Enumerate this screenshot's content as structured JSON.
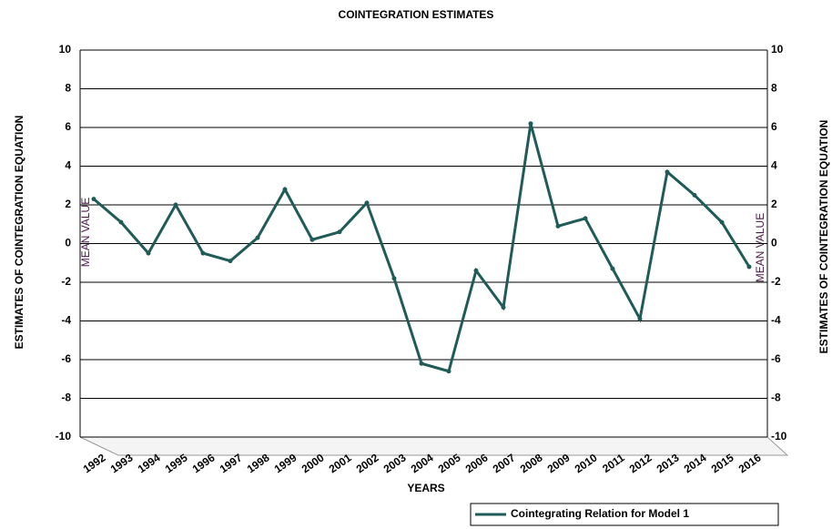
{
  "chart_data": {
    "type": "line",
    "title": "COINTEGRATION ESTIMATES",
    "x_label": "YEARS",
    "y_label": "ESTIMATES OF COINTEGRATION EQUATION",
    "y2_label": "ESTIMATES OF COINTEGRATION EQUATION",
    "annotations": [
      "MEAN VALUE",
      "MEAN VALUE"
    ],
    "categories": [
      "1992",
      "1993",
      "1994",
      "1995",
      "1996",
      "1997",
      "1998",
      "1999",
      "2000",
      "2001",
      "2002",
      "2003",
      "2004",
      "2005",
      "2006",
      "2007",
      "2008",
      "2009",
      "2010",
      "2011",
      "2012",
      "2013",
      "2014",
      "2015",
      "2016"
    ],
    "series": [
      {
        "name": "Cointegrating Relation for Model 1",
        "color": "#1f5b57",
        "values": [
          2.3,
          1.1,
          -0.5,
          2.0,
          -0.5,
          -0.9,
          0.3,
          2.8,
          0.2,
          0.6,
          2.1,
          -1.8,
          -6.2,
          -6.6,
          -1.4,
          -3.3,
          6.2,
          0.9,
          1.3,
          -1.3,
          -3.9,
          3.7,
          2.5,
          1.1,
          -1.2
        ]
      }
    ],
    "ylim": [
      -10,
      10
    ],
    "yticks": [
      -10,
      -8,
      -6,
      -4,
      -2,
      0,
      2,
      4,
      6,
      8,
      10
    ],
    "y2lim": [
      -10,
      10
    ],
    "y2ticks": [
      -10,
      -8,
      -6,
      -4,
      -2,
      0,
      2,
      4,
      6,
      8,
      10
    ],
    "grid": true,
    "legend": "bottom-right"
  }
}
